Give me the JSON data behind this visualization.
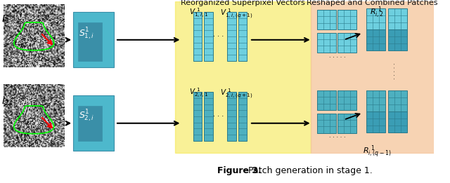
{
  "title": "Figure 3. Patch generation in stage 1.",
  "title_bold_part": "Figure 3.",
  "title_normal_part": " Patch generation in stage 1.",
  "bg_color": "#ffffff",
  "yellow_bg": "#f5e642",
  "yellow_bg_alpha": 0.55,
  "peach_bg": "#f5c8a0",
  "peach_bg_alpha": 0.7,
  "teal_color": "#5bbcd6",
  "dark_teal": "#3a8fa8",
  "teal_block_color": "#4db8cc",
  "label_top1": "Reorganized Superpixel Vectors",
  "label_top2": "Reshaped and Combined Patches",
  "arrow_color": "#1a1a1a",
  "text_color": "#111111"
}
